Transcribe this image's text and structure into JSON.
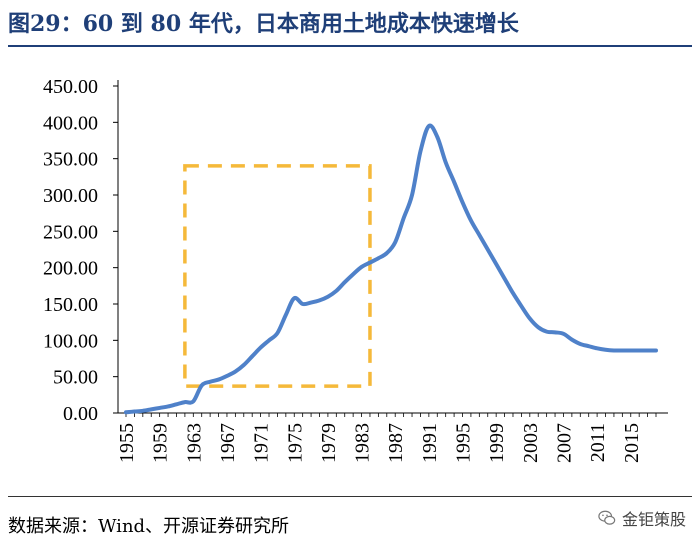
{
  "title": "图29：60 到 80 年代，日本商用土地成本快速增长",
  "source": "数据来源：Wind、开源证券研究所",
  "watermark": "金钜策股",
  "colors": {
    "title": "#1f3f78",
    "line": "#4f81c9",
    "highlight": "#f5b93a"
  },
  "chart_data": {
    "type": "line",
    "title": "60 到 80 年代，日本商用土地成本快速增长",
    "xlabel": "",
    "ylabel": "",
    "ylim": [
      0,
      450
    ],
    "yticks": [
      "0.00",
      "50.00",
      "100.00",
      "150.00",
      "200.00",
      "250.00",
      "300.00",
      "350.00",
      "400.00",
      "450.00"
    ],
    "xlim": [
      1955,
      2018
    ],
    "xticks": [
      "1955",
      "1959",
      "1963",
      "1967",
      "1971",
      "1975",
      "1979",
      "1983",
      "1987",
      "1991",
      "1995",
      "1999",
      "2003",
      "2007",
      "2011",
      "2015"
    ],
    "series": [
      {
        "name": "商用土地成本",
        "x": [
          1955,
          1956,
          1957,
          1958,
          1959,
          1960,
          1961,
          1962,
          1963,
          1964,
          1965,
          1966,
          1967,
          1968,
          1969,
          1970,
          1971,
          1972,
          1973,
          1974,
          1975,
          1976,
          1977,
          1978,
          1979,
          1980,
          1981,
          1982,
          1983,
          1984,
          1985,
          1986,
          1987,
          1988,
          1989,
          1990,
          1991,
          1992,
          1993,
          1994,
          1995,
          1996,
          1997,
          1998,
          1999,
          2000,
          2001,
          2002,
          2003,
          2004,
          2005,
          2006,
          2007,
          2008,
          2009,
          2010,
          2011,
          2012,
          2013,
          2014,
          2015,
          2016,
          2017,
          2018
        ],
        "values": [
          1,
          2,
          3,
          5,
          7,
          9,
          12,
          15,
          16,
          38,
          43,
          46,
          51,
          57,
          66,
          78,
          90,
          100,
          110,
          135,
          158,
          150,
          152,
          155,
          160,
          168,
          180,
          191,
          201,
          207,
          213,
          220,
          235,
          268,
          300,
          360,
          395,
          380,
          345,
          318,
          290,
          265,
          245,
          225,
          205,
          185,
          165,
          147,
          130,
          118,
          112,
          111,
          109,
          101,
          95,
          92,
          89,
          87,
          86,
          86,
          86,
          86,
          86,
          86
        ]
      }
    ],
    "annotation": {
      "type": "dashed-box",
      "x_range": [
        1962,
        1984
      ],
      "y_range": [
        37,
        340
      ]
    }
  }
}
